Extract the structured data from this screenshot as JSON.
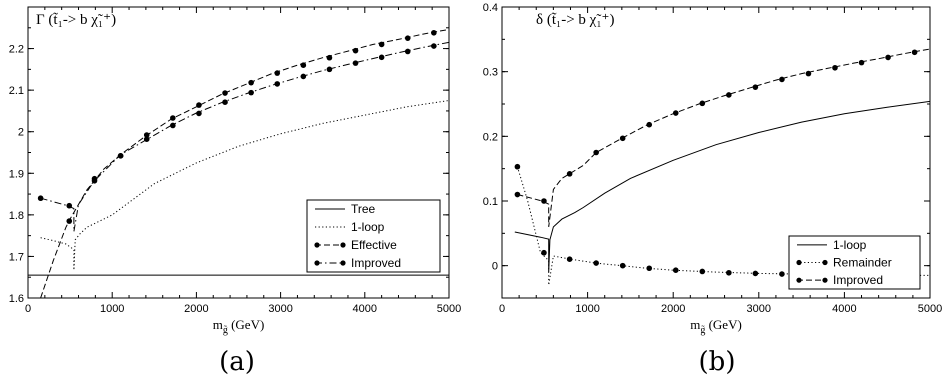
{
  "chart_data": [
    {
      "type": "line",
      "panel_label": "(a)",
      "title": "Γ (t̃₁-> b χ̃₁⁺)",
      "xlabel": "m",
      "xlabel_sub": "g̃",
      "xlabel_unit": " (GeV)",
      "xlim": [
        0,
        5000
      ],
      "ylim": [
        1.6,
        2.3
      ],
      "xticks": [
        0,
        1000,
        2000,
        3000,
        4000,
        5000
      ],
      "xtick_labels": [
        "0",
        "1000",
        "2000",
        "3000",
        "4000",
        "5000"
      ],
      "yticks": [
        1.6,
        1.7,
        1.8,
        1.9,
        2.0,
        2.1,
        2.2
      ],
      "ytick_labels": [
        "1.6",
        "1.7",
        "1.8",
        "1.9",
        "2",
        "2.1",
        "2.2"
      ],
      "legend_position": "bottom-right",
      "series": [
        {
          "name": "Tree",
          "style": "solid",
          "x": [
            0,
            5000
          ],
          "y": [
            1.655,
            1.655
          ]
        },
        {
          "name": "1-loop",
          "style": "dotted",
          "x": [
            150,
            300,
            450,
            520,
            545,
            545,
            560,
            620,
            700,
            850,
            1000,
            1500,
            2000,
            2500,
            3000,
            3500,
            4000,
            4500,
            5000
          ],
          "y": [
            1.745,
            1.738,
            1.73,
            1.72,
            1.715,
            1.667,
            1.74,
            1.755,
            1.77,
            1.785,
            1.8,
            1.875,
            1.925,
            1.965,
            1.995,
            2.02,
            2.04,
            2.06,
            2.075
          ]
        },
        {
          "name": "Effective",
          "style": "dashed",
          "markers": true,
          "x": [
            150,
            300,
            450,
            500,
            700,
            900,
            1100,
            1400,
            1700,
            2000,
            2300,
            2600,
            2900,
            3200,
            3500,
            3800,
            4100,
            4400,
            4700,
            5000
          ],
          "y": [
            1.6,
            1.69,
            1.77,
            1.79,
            1.86,
            1.91,
            1.945,
            1.99,
            2.03,
            2.06,
            2.09,
            2.115,
            2.14,
            2.16,
            2.178,
            2.194,
            2.21,
            2.222,
            2.235,
            2.246
          ]
        },
        {
          "name": "Improved",
          "style": "dashdot",
          "markers": true,
          "x": [
            150,
            470,
            545,
            545,
            600,
            780,
            1100,
            1400,
            1700,
            2000,
            2300,
            2600,
            2900,
            3200,
            3500,
            3800,
            4100,
            4400,
            4700,
            5000
          ],
          "y": [
            1.84,
            1.822,
            1.815,
            1.76,
            1.825,
            1.88,
            1.945,
            1.98,
            2.015,
            2.045,
            2.07,
            2.092,
            2.112,
            2.13,
            2.147,
            2.162,
            2.176,
            2.19,
            2.203,
            2.215
          ]
        }
      ],
      "marker_points": {
        "Effective": {
          "x": [
            490,
            790,
            1100,
            1410,
            1720,
            2030,
            2340,
            2650,
            2960,
            3270,
            3580,
            3890,
            4200,
            4510,
            4820
          ],
          "y": [
            1.785,
            1.887,
            1.942,
            1.992,
            2.033,
            2.064,
            2.093,
            2.118,
            2.141,
            2.16,
            2.178,
            2.195,
            2.21,
            2.225,
            2.238
          ]
        },
        "Improved": {
          "x": [
            150,
            490,
            790,
            1100,
            1410,
            1720,
            2030,
            2340,
            2650,
            2960,
            3270,
            3580,
            3890,
            4200,
            4510,
            4820
          ],
          "y": [
            1.84,
            1.822,
            1.882,
            1.942,
            1.982,
            2.015,
            2.044,
            2.071,
            2.094,
            2.115,
            2.133,
            2.15,
            2.165,
            2.179,
            2.193,
            2.206
          ]
        }
      }
    },
    {
      "type": "line",
      "panel_label": "(b)",
      "title": "δ (t̃₁-> b χ̃₁⁺)",
      "xlabel": "m",
      "xlabel_sub": "g̃",
      "xlabel_unit": " (GeV)",
      "xlim": [
        0,
        5000
      ],
      "ylim": [
        -0.05,
        0.4
      ],
      "xticks": [
        0,
        1000,
        2000,
        3000,
        4000,
        5000
      ],
      "xtick_labels": [
        "0",
        "1000",
        "2000",
        "3000",
        "4000",
        "5000"
      ],
      "yticks": [
        0,
        0.1,
        0.2,
        0.3,
        0.4
      ],
      "ytick_labels": [
        "0",
        "0.1",
        "0.2",
        "0.3",
        "0.4"
      ],
      "legend_position": "bottom-right",
      "series": [
        {
          "name": "1-loop",
          "style": "solid",
          "x": [
            150,
            300,
            450,
            545,
            545,
            560,
            600,
            700,
            850,
            950,
            1200,
            1500,
            2000,
            2500,
            3000,
            3500,
            4000,
            4500,
            5000
          ],
          "y": [
            0.052,
            0.048,
            0.044,
            0.041,
            -0.01,
            0.04,
            0.06,
            0.072,
            0.082,
            0.09,
            0.112,
            0.135,
            0.163,
            0.187,
            0.206,
            0.222,
            0.235,
            0.245,
            0.254
          ]
        },
        {
          "name": "Remainder",
          "style": "dotted",
          "markers": true,
          "x": [
            180,
            300,
            450,
            545,
            545,
            600,
            800,
            1100,
            1400,
            1700,
            2000,
            2500,
            3000,
            3500,
            4000,
            4500,
            5000
          ],
          "y": [
            0.153,
            0.1,
            0.02,
            0.008,
            -0.03,
            0.015,
            0.01,
            0.004,
            0.0,
            -0.004,
            -0.007,
            -0.01,
            -0.012,
            -0.013,
            -0.014,
            -0.015,
            -0.015
          ]
        },
        {
          "name": "Improved",
          "style": "dashed",
          "markers": true,
          "x": [
            180,
            470,
            545,
            545,
            600,
            700,
            800,
            950,
            1100,
            1400,
            1700,
            2000,
            2300,
            2600,
            2900,
            3200,
            3500,
            3800,
            4100,
            4400,
            4700,
            5000
          ],
          "y": [
            0.11,
            0.1,
            0.095,
            0.06,
            0.118,
            0.135,
            0.143,
            0.155,
            0.175,
            0.197,
            0.218,
            0.235,
            0.25,
            0.263,
            0.275,
            0.287,
            0.297,
            0.305,
            0.313,
            0.32,
            0.328,
            0.335
          ]
        }
      ],
      "marker_points": {
        "Remainder": {
          "x": [
            180,
            490,
            790,
            1100,
            1410,
            1720,
            2030,
            2340,
            2650,
            2960,
            3270,
            3580,
            3890,
            4200,
            4510,
            4820
          ],
          "y": [
            0.153,
            0.02,
            0.01,
            0.004,
            0.0,
            -0.004,
            -0.007,
            -0.009,
            -0.011,
            -0.012,
            -0.013,
            -0.014,
            -0.014,
            -0.015,
            -0.015,
            -0.015
          ]
        },
        "Improved": {
          "x": [
            180,
            490,
            790,
            1100,
            1410,
            1720,
            2030,
            2340,
            2650,
            2960,
            3270,
            3580,
            3890,
            4200,
            4510,
            4820
          ],
          "y": [
            0.11,
            0.1,
            0.142,
            0.175,
            0.197,
            0.218,
            0.236,
            0.251,
            0.264,
            0.276,
            0.288,
            0.297,
            0.306,
            0.314,
            0.322,
            0.33
          ]
        }
      }
    }
  ]
}
